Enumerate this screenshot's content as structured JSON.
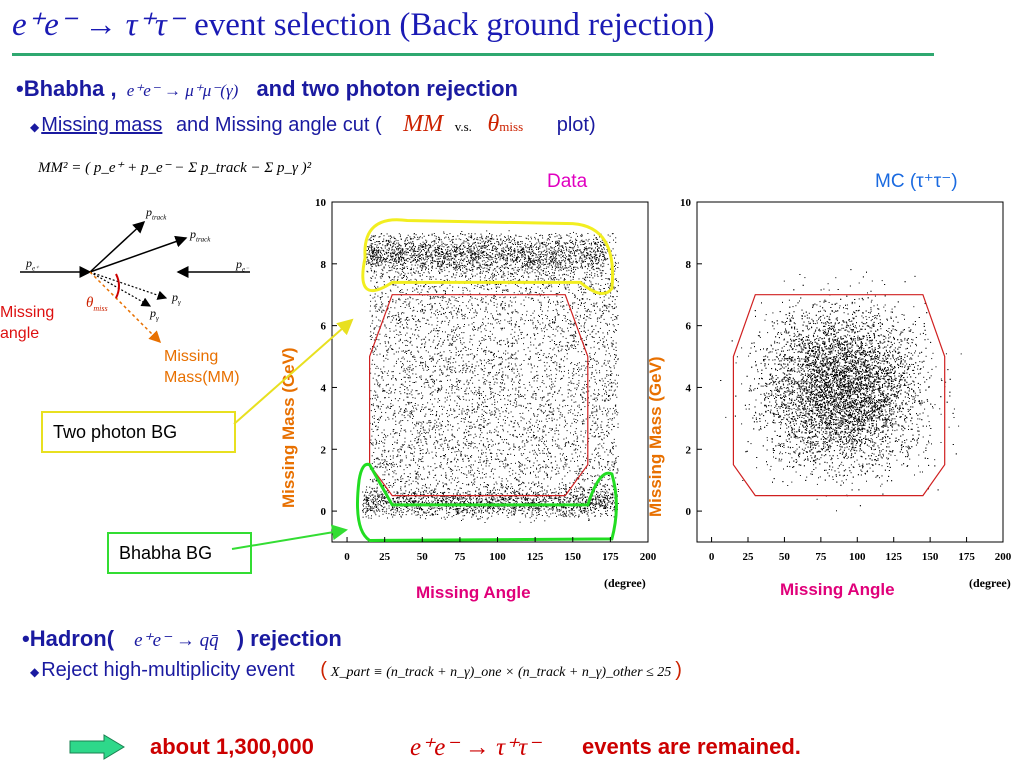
{
  "title": {
    "formula": "e⁺e⁻ → τ⁺τ⁻",
    "text": "event selection (Back ground rejection)"
  },
  "bhabha": {
    "label_start": "•Bhabha ,",
    "formula": "e⁺e⁻ → μ⁺μ⁻(γ)",
    "label_end": "and  two photon  rejection",
    "sub_link": "Missing mass",
    "sub_mid": "and Missing angle cut (",
    "sub_mm": "MM",
    "sub_vs": "v.s.",
    "sub_theta": "θ",
    "sub_theta_sub": "miss",
    "sub_end": "plot)"
  },
  "mm_formula": "MM² = ( p_e⁺ + p_e⁻ − Σ p_track − Σ p_γ )²",
  "diagram": {
    "p_eplus": "p",
    "p_eplus_sub": "e⁺",
    "p_eminus": "p",
    "p_eminus_sub": "e⁻",
    "p_track_1": "p",
    "p_track_1_sub": "track",
    "p_track_2": "p",
    "p_track_2_sub": "track",
    "p_gamma_1": "p",
    "p_gamma_1_sub": "γ",
    "p_gamma_2": "p",
    "p_gamma_2_sub": "γ",
    "theta": "θ",
    "theta_sub": "miss",
    "missing_angle": [
      "Missing",
      "angle"
    ],
    "missing_mass": [
      "Missing",
      "Mass(MM)"
    ]
  },
  "callouts": {
    "two_photon": "Two photon BG",
    "bhabha": "Bhabha BG"
  },
  "plots": [
    {
      "header": "Data",
      "header_color": "#e000c0",
      "ylabel": "Missing Mass (GeV)",
      "xlabel": "Missing Angle",
      "unit": "(degree)",
      "xticks": [
        "0",
        "25",
        "50",
        "75",
        "100",
        "125",
        "150",
        "175",
        "200"
      ],
      "yticks": [
        "10",
        "8",
        "6",
        "4",
        "2",
        "0"
      ]
    },
    {
      "header": "MC (τ⁺τ⁻)",
      "header_color": "#1a6ae0",
      "ylabel": "Missing Mass (GeV)",
      "xlabel": "Missing Angle",
      "unit": "(degree)",
      "xticks": [
        "0",
        "25",
        "50",
        "75",
        "100",
        "125",
        "150",
        "175",
        "200"
      ],
      "yticks": [
        "10",
        "8",
        "6",
        "4",
        "2",
        "0"
      ]
    }
  ],
  "hadron": {
    "label_start": "•Hadron(",
    "formula": "e⁺e⁻ → qq̄",
    "label_end": ") rejection",
    "sub": "Reject high-multiplicity event",
    "cut_formula": "X_part ≡ (n_track + n_γ)_one × (n_track + n_γ)_other ≤ 25"
  },
  "bottom": {
    "count": "about 1,300,000",
    "formula": "e⁺e⁻ → τ⁺τ⁻",
    "text": "events are remained."
  },
  "colors": {
    "title": "#1a1ab4",
    "accent_line": "#2fa870",
    "yellow": "#f2ee20",
    "green": "#22dd22",
    "octagon": "#d02020"
  }
}
